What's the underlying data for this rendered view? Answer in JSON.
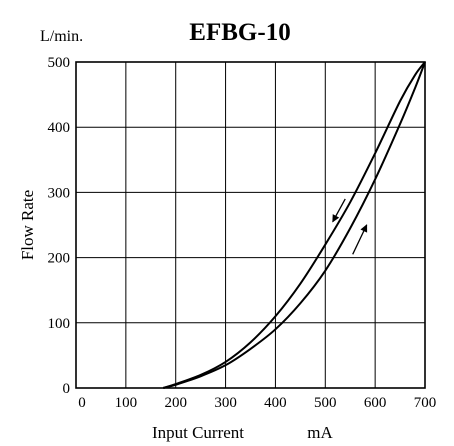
{
  "chart_data": {
    "type": "line",
    "title": "EFBG-10",
    "y_unit": "L/min.",
    "xlabel": "Input Current",
    "x_unit": "mA",
    "ylabel": "Flow Rate",
    "xlim": [
      0,
      700
    ],
    "ylim": [
      0,
      500
    ],
    "x_ticks": [
      0,
      100,
      200,
      300,
      400,
      500,
      600,
      700
    ],
    "y_ticks": [
      0,
      100,
      200,
      300,
      400,
      500
    ],
    "grid": true,
    "legend": "none",
    "series": [
      {
        "direction": "increasing",
        "x": [
          175,
          200,
          250,
          300,
          350,
          400,
          450,
          500,
          550,
          600,
          650,
          680,
          700
        ],
        "y": [
          0,
          5,
          18,
          35,
          60,
          90,
          130,
          180,
          245,
          320,
          405,
          460,
          500
        ]
      },
      {
        "direction": "decreasing",
        "x": [
          700,
          680,
          650,
          600,
          550,
          500,
          450,
          400,
          350,
          300,
          250,
          200,
          175
        ],
        "y": [
          500,
          480,
          440,
          360,
          285,
          220,
          160,
          110,
          70,
          40,
          20,
          6,
          0
        ]
      }
    ]
  }
}
